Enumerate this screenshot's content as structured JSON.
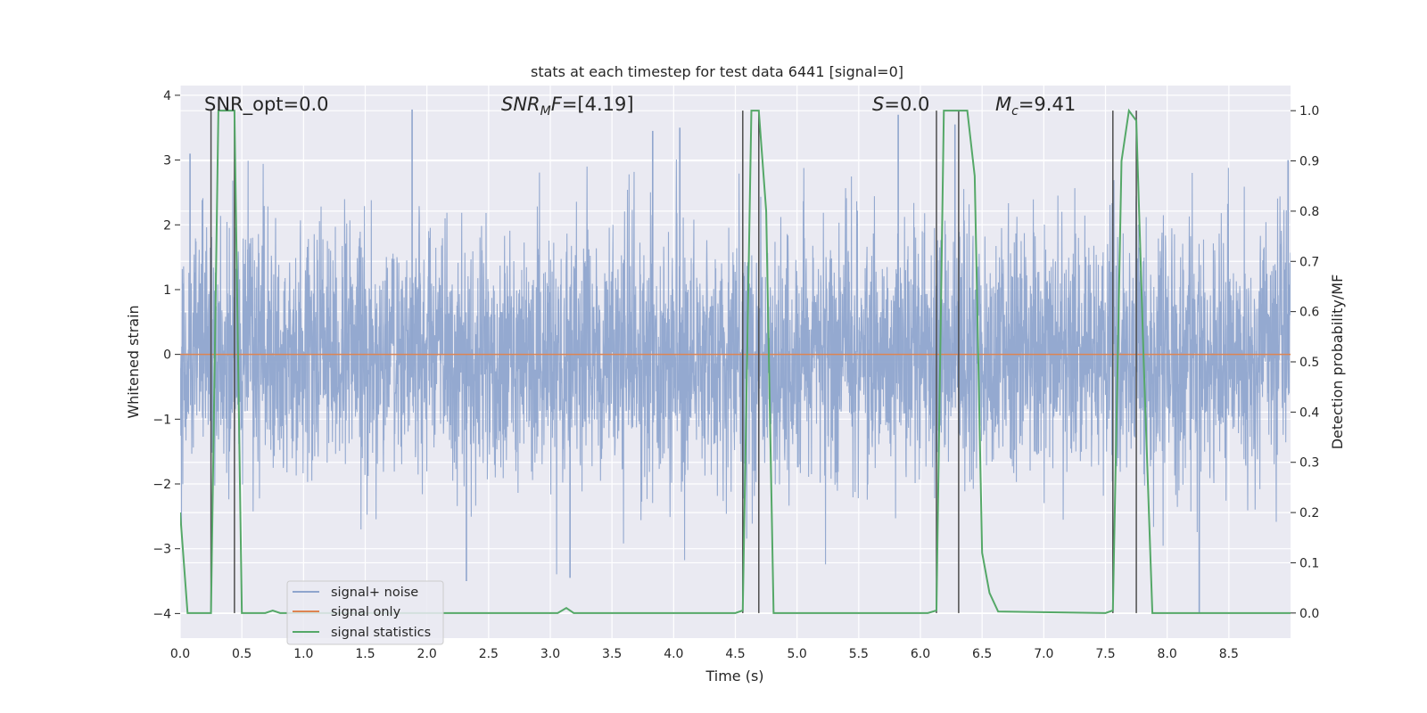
{
  "chart_data": {
    "type": "line",
    "title": "stats at each timestep for test data 6441 [signal=0]",
    "xlabel": "Time (s)",
    "ylabel_left": "Whitened strain",
    "ylabel_right": "Detection probability/MF",
    "xlim": [
      0,
      9.0
    ],
    "ylim_left": [
      -4.38,
      4.15
    ],
    "ylim_right": [
      -0.05,
      1.05
    ],
    "x_ticks": [
      "0.0",
      "0.5",
      "1.0",
      "1.5",
      "2.0",
      "2.5",
      "3.0",
      "3.5",
      "4.0",
      "4.5",
      "5.0",
      "5.5",
      "6.0",
      "6.5",
      "7.0",
      "7.5",
      "8.0",
      "8.5"
    ],
    "y_ticks_left": [
      "−4",
      "−3",
      "−2",
      "−1",
      "0",
      "1",
      "2",
      "3",
      "4"
    ],
    "y_ticks_right": [
      "0.0",
      "0.1",
      "0.2",
      "0.3",
      "0.4",
      "0.5",
      "0.6",
      "0.7",
      "0.8",
      "0.9",
      "1.0"
    ],
    "grid": true,
    "legend_position": "lower-left",
    "series": [
      {
        "name": "signal+ noise",
        "axis": "left",
        "color": "#8fa5cd",
        "kind": "noise",
        "notable_peaks": [
          {
            "x": 0.08,
            "y": 3.1
          },
          {
            "x": 1.88,
            "y": 3.78
          },
          {
            "x": 2.32,
            "y": -3.5
          },
          {
            "x": 3.16,
            "y": -3.45
          },
          {
            "x": 3.83,
            "y": 3.45
          },
          {
            "x": 4.05,
            "y": 3.5
          },
          {
            "x": 5.82,
            "y": 3.7
          },
          {
            "x": 6.28,
            "y": 3.55
          },
          {
            "x": 8.26,
            "y": -4.0
          },
          {
            "x": 8.98,
            "y": 3.0
          }
        ]
      },
      {
        "name": "signal only",
        "axis": "left",
        "color": "#dd8452",
        "x": [
          0,
          9.0
        ],
        "y": [
          0,
          0
        ]
      },
      {
        "name": "signal statistics",
        "axis": "right",
        "color": "#55a868",
        "x": [
          0.0,
          0.06,
          0.19,
          0.25,
          0.31,
          0.38,
          0.44,
          0.5,
          0.56,
          0.69,
          0.75,
          0.81,
          3.0,
          3.06,
          3.13,
          3.19,
          3.25,
          4.5,
          4.56,
          4.63,
          4.69,
          4.75,
          4.81,
          4.88,
          6.06,
          6.13,
          6.19,
          6.25,
          6.31,
          6.38,
          6.44,
          6.5,
          6.56,
          6.63,
          7.5,
          7.56,
          7.63,
          7.69,
          7.75,
          7.81,
          7.88,
          9.0
        ],
        "y": [
          0.2,
          0.0,
          0.0,
          0.0,
          1.0,
          1.0,
          1.0,
          0.0,
          0.0,
          0.0,
          0.005,
          0.0,
          0.0,
          0.0,
          0.01,
          0.0,
          0.0,
          0.0,
          0.005,
          1.0,
          1.0,
          0.8,
          0.0,
          0.0,
          0.0,
          0.005,
          1.0,
          1.0,
          1.0,
          1.0,
          0.87,
          0.12,
          0.04,
          0.003,
          0.0,
          0.005,
          0.9,
          1.0,
          0.98,
          0.5,
          0.0,
          0.0
        ]
      }
    ],
    "vertical_markers": {
      "color": "#4d4d4d",
      "pairs": [
        [
          0.25,
          0.44
        ],
        [
          4.56,
          4.69
        ],
        [
          6.13,
          6.31
        ],
        [
          7.56,
          7.75
        ]
      ]
    },
    "annotations": [
      {
        "text": "SNR_opt=0.0",
        "x": 0.2
      },
      {
        "text": "[4.19]",
        "x": 2.6,
        "prefix": "SNR",
        "sub": "M",
        "mid": "F="
      },
      {
        "text": "=0.0",
        "x": 5.6,
        "prefix": "S"
      },
      {
        "text": "=9.41",
        "x": 6.6,
        "prefix": "M",
        "sub": "c"
      }
    ]
  }
}
